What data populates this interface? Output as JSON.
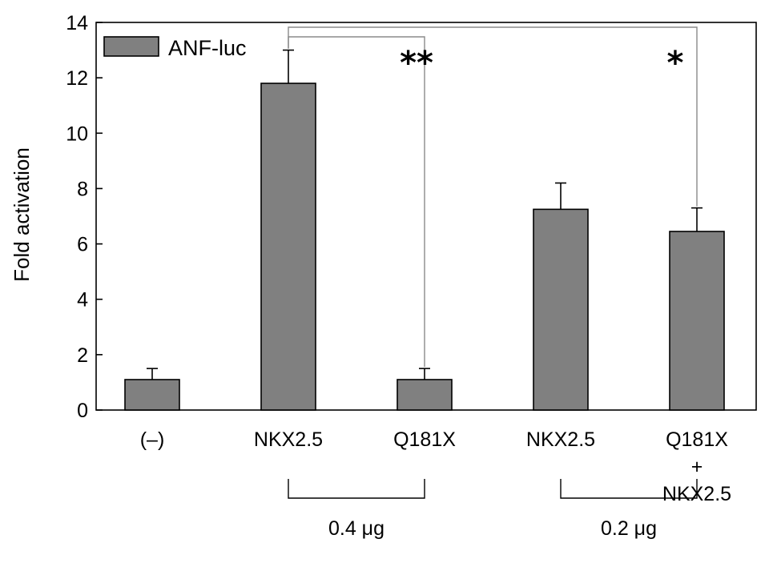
{
  "chart_data": {
    "type": "bar",
    "title": "",
    "xlabel": "",
    "ylabel": "Fold activation",
    "ylim": [
      0,
      14
    ],
    "yticks": [
      0,
      2,
      4,
      6,
      8,
      10,
      12,
      14
    ],
    "categories": [
      "(–)",
      "NKX2.5",
      "Q181X",
      "NKX2.5",
      "Q181X + NKX2.5"
    ],
    "category_lines": [
      [
        "(–)"
      ],
      [
        "NKX2.5"
      ],
      [
        "Q181X"
      ],
      [
        "NKX2.5"
      ],
      [
        "Q181X",
        "+",
        "NKX2.5"
      ]
    ],
    "series": [
      {
        "name": "ANF-luc",
        "values": [
          1.1,
          11.8,
          1.1,
          7.25,
          6.45
        ],
        "errors": [
          0.4,
          1.2,
          0.4,
          0.95,
          0.85
        ],
        "color": "#808080"
      }
    ],
    "grid": false,
    "legend_position": "top-left",
    "significance": [
      {
        "from": 1,
        "to": 2,
        "label": "**"
      },
      {
        "from": 1,
        "to": 4,
        "label": "*"
      }
    ],
    "dose_groups": [
      {
        "start": 1,
        "end": 2,
        "label": "0.4 μg"
      },
      {
        "start": 3,
        "end": 4,
        "label": "0.2 μg"
      }
    ]
  }
}
